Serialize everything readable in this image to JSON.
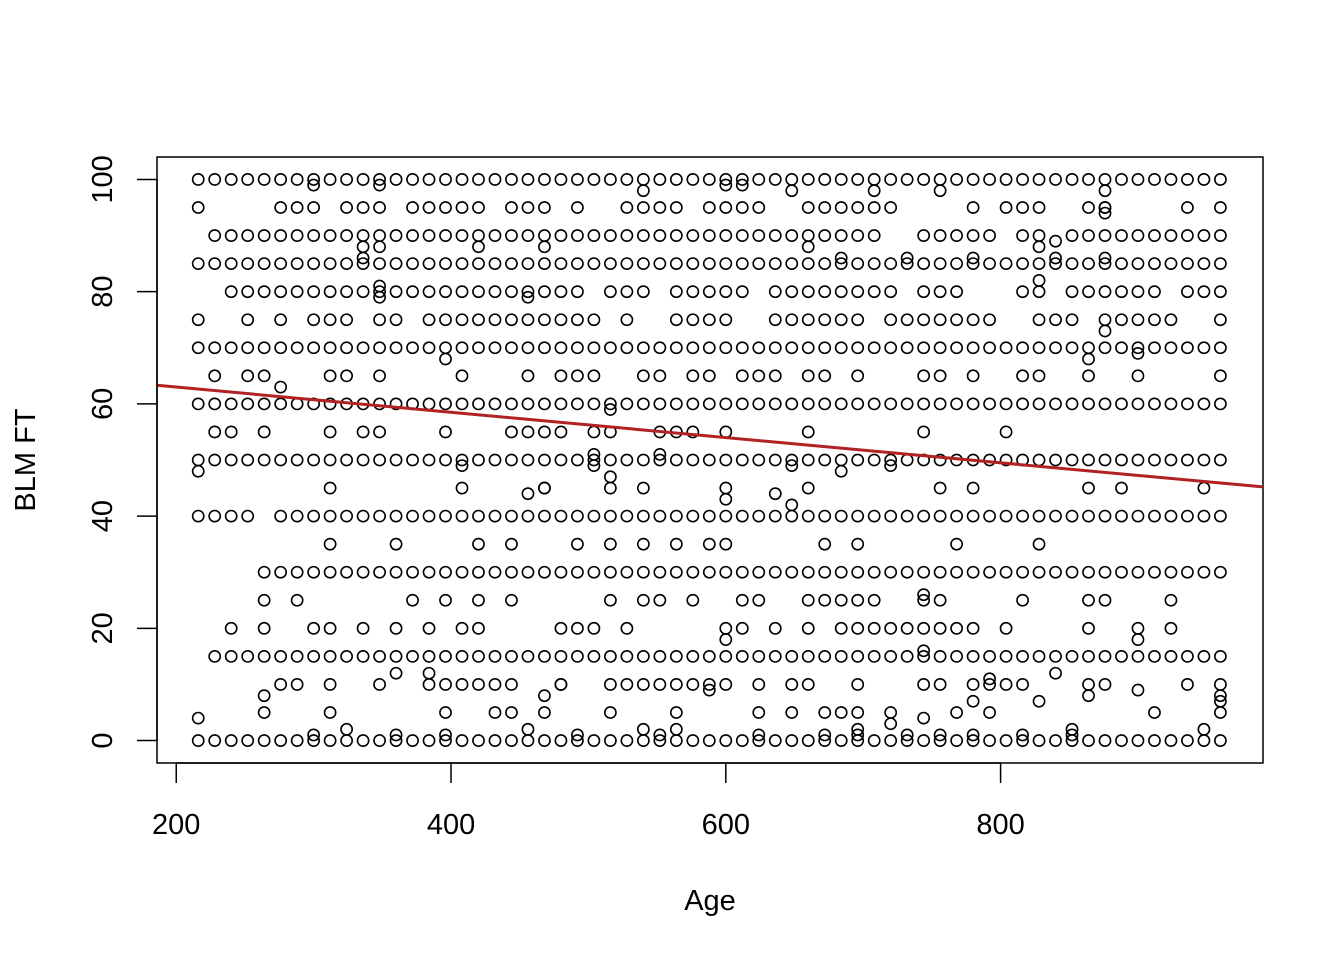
{
  "chart_data": {
    "type": "scatter",
    "title": "",
    "xlabel": "Age",
    "ylabel": "BLM FT",
    "xlim": [
      186,
      991
    ],
    "ylim": [
      -4,
      104
    ],
    "x_ticks": [
      200,
      400,
      600,
      800
    ],
    "y_ticks": [
      0,
      20,
      40,
      60,
      80,
      100
    ],
    "grid": false,
    "legend": "none",
    "point_color": "#000000",
    "line_color": "#B22222",
    "regression_line": {
      "intercept": 67.5,
      "slope": -0.0225
    },
    "rows": [
      {
        "y": 100,
        "x": [
          [
            216,
            960
          ]
        ]
      },
      {
        "y": 95,
        "x": [
          216,
          [
            276,
            300
          ],
          [
            324,
            348
          ],
          [
            372,
            420
          ],
          [
            444,
            468
          ],
          492,
          [
            528,
            564
          ],
          [
            588,
            624
          ],
          [
            660,
            696
          ],
          708,
          720,
          780,
          [
            804,
            828
          ],
          [
            864,
            876
          ],
          936,
          960
        ]
      },
      {
        "y": 90,
        "x": [
          [
            228,
            708
          ],
          [
            744,
            792
          ],
          [
            816,
            828
          ],
          [
            852,
            960
          ]
        ]
      },
      {
        "y": 85,
        "x": [
          [
            216,
            960
          ]
        ]
      },
      {
        "y": 80,
        "x": [
          [
            240,
            492
          ],
          [
            516,
            540
          ],
          [
            564,
            612
          ],
          [
            636,
            720
          ],
          [
            744,
            768
          ],
          [
            816,
            828
          ],
          [
            852,
            912
          ],
          [
            936,
            960
          ]
        ]
      },
      {
        "y": 75,
        "x": [
          216,
          252,
          276,
          [
            300,
            324
          ],
          [
            348,
            360
          ],
          [
            384,
            504
          ],
          528,
          [
            564,
            600
          ],
          [
            636,
            696
          ],
          [
            720,
            732
          ],
          [
            744,
            792
          ],
          [
            828,
            852
          ],
          [
            876,
            924
          ],
          960
        ]
      },
      {
        "y": 70,
        "x": [
          [
            216,
            960
          ]
        ]
      },
      {
        "y": 65,
        "x": [
          228,
          [
            252,
            264
          ],
          [
            312,
            324
          ],
          348,
          408,
          456,
          [
            480,
            504
          ],
          [
            540,
            552
          ],
          [
            576,
            588
          ],
          [
            612,
            636
          ],
          [
            660,
            672
          ],
          696,
          [
            744,
            756
          ],
          780,
          [
            816,
            828
          ],
          864,
          900,
          960
        ]
      },
      {
        "y": 60,
        "x": [
          [
            216,
            960
          ]
        ]
      },
      {
        "y": 55,
        "x": [
          [
            228,
            240
          ],
          264,
          312,
          [
            336,
            348
          ],
          396,
          [
            444,
            480
          ],
          [
            504,
            516
          ],
          [
            552,
            576
          ],
          600,
          660,
          744,
          804
        ]
      },
      {
        "y": 50,
        "x": [
          [
            216,
            960
          ]
        ]
      },
      {
        "y": 45,
        "x": [
          312,
          408,
          468,
          516,
          540,
          600,
          660,
          756,
          780,
          864,
          888,
          948
        ]
      },
      {
        "y": 40,
        "x": [
          [
            216,
            252
          ],
          [
            276,
            960
          ]
        ]
      },
      {
        "y": 35,
        "x": [
          312,
          360,
          420,
          444,
          492,
          516,
          540,
          564,
          [
            588,
            600
          ],
          672,
          696,
          768,
          828
        ]
      },
      {
        "y": 30,
        "x": [
          [
            264,
            960
          ]
        ]
      },
      {
        "y": 25,
        "x": [
          264,
          288,
          372,
          396,
          420,
          444,
          516,
          [
            540,
            552
          ],
          576,
          [
            612,
            624
          ],
          [
            660,
            708
          ],
          [
            744,
            756
          ],
          816,
          [
            864,
            876
          ],
          924
        ]
      },
      {
        "y": 20,
        "x": [
          240,
          264,
          [
            300,
            312
          ],
          336,
          360,
          384,
          [
            408,
            420
          ],
          [
            480,
            504
          ],
          528,
          600,
          612,
          636,
          660,
          [
            684,
            780
          ],
          804,
          864,
          900,
          924
        ]
      },
      {
        "y": 15,
        "x": [
          [
            228,
            960
          ]
        ]
      },
      {
        "y": 10,
        "x": [
          [
            276,
            288
          ],
          312,
          348,
          [
            384,
            444
          ],
          480,
          [
            516,
            600
          ],
          624,
          [
            648,
            660
          ],
          696,
          [
            744,
            756
          ],
          [
            780,
            816
          ],
          864,
          876,
          936,
          960
        ]
      },
      {
        "y": 5,
        "x": [
          264,
          312,
          396,
          [
            432,
            444
          ],
          468,
          516,
          564,
          624,
          648,
          [
            672,
            696
          ],
          720,
          768,
          792,
          912,
          960
        ]
      },
      {
        "y": 0,
        "x": [
          [
            216,
            960
          ]
        ]
      }
    ],
    "extra_points": [
      [
        216,
        48
      ],
      [
        216,
        4
      ],
      [
        264,
        8
      ],
      [
        276,
        63
      ],
      [
        360,
        12
      ],
      [
        384,
        12
      ],
      [
        396,
        68
      ],
      [
        336,
        88
      ],
      [
        336,
        86
      ],
      [
        348,
        81
      ],
      [
        348,
        79
      ],
      [
        348,
        88
      ],
      [
        300,
        99
      ],
      [
        348,
        99
      ],
      [
        420,
        88
      ],
      [
        468,
        88
      ],
      [
        456,
        79
      ],
      [
        540,
        98
      ],
      [
        600,
        99
      ],
      [
        612,
        99
      ],
      [
        648,
        98
      ],
      [
        660,
        88
      ],
      [
        684,
        86
      ],
      [
        708,
        98
      ],
      [
        732,
        86
      ],
      [
        756,
        98
      ],
      [
        780,
        86
      ],
      [
        828,
        88
      ],
      [
        828,
        82
      ],
      [
        840,
        89
      ],
      [
        840,
        86
      ],
      [
        876,
        98
      ],
      [
        876,
        95
      ],
      [
        876,
        94
      ],
      [
        876,
        86
      ],
      [
        876,
        73
      ],
      [
        864,
        68
      ],
      [
        900,
        69
      ],
      [
        408,
        49
      ],
      [
        456,
        44
      ],
      [
        468,
        45
      ],
      [
        504,
        51
      ],
      [
        504,
        49
      ],
      [
        516,
        47
      ],
      [
        516,
        59
      ],
      [
        552,
        51
      ],
      [
        600,
        43
      ],
      [
        636,
        44
      ],
      [
        648,
        49
      ],
      [
        648,
        42
      ],
      [
        684,
        48
      ],
      [
        720,
        49
      ],
      [
        744,
        26
      ],
      [
        744,
        16
      ],
      [
        744,
        4
      ],
      [
        600,
        18
      ],
      [
        468,
        8
      ],
      [
        480,
        10
      ],
      [
        588,
        9
      ],
      [
        780,
        7
      ],
      [
        792,
        11
      ],
      [
        828,
        7
      ],
      [
        840,
        12
      ],
      [
        864,
        8
      ],
      [
        900,
        9
      ],
      [
        900,
        18
      ],
      [
        960,
        7
      ],
      [
        960,
        8
      ],
      [
        948,
        2
      ],
      [
        324,
        2
      ],
      [
        300,
        1
      ],
      [
        360,
        1
      ],
      [
        396,
        1
      ],
      [
        456,
        2
      ],
      [
        492,
        1
      ],
      [
        540,
        2
      ],
      [
        552,
        1
      ],
      [
        564,
        2
      ],
      [
        624,
        1
      ],
      [
        672,
        1
      ],
      [
        696,
        1
      ],
      [
        696,
        2
      ],
      [
        720,
        3
      ],
      [
        732,
        1
      ],
      [
        756,
        1
      ],
      [
        780,
        1
      ],
      [
        816,
        1
      ],
      [
        852,
        1
      ],
      [
        852,
        2
      ]
    ]
  }
}
